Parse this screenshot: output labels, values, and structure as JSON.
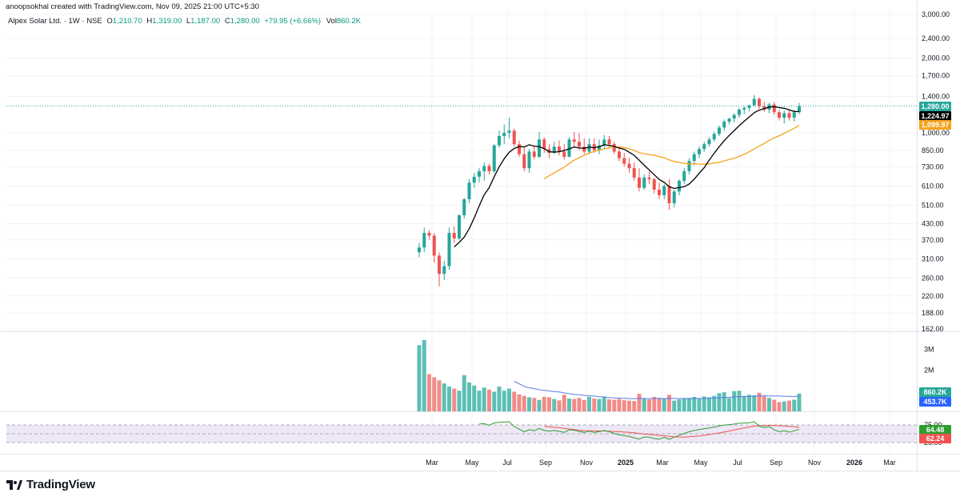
{
  "credit": "anoopsokhal created with TradingView.com, Nov 09, 2025 21:00 UTC+5:30",
  "symbol_title": "Alpex Solar Ltd. · 1W · NSE",
  "ohlc": {
    "open_label": "O",
    "open": "1,210.70",
    "high_label": "H",
    "high": "1,319.00",
    "low_label": "L",
    "low": "1,187.00",
    "close_label": "C",
    "close": "1,280.00",
    "change": "+79.95 (+6.66%)",
    "vol_label": "Vol",
    "vol": "860.2K"
  },
  "brand": {
    "name": "TradingView",
    "logo_icon": "tradingview-logo-icon"
  },
  "colors": {
    "up": "#26a69a",
    "down": "#ef5350",
    "sma_fast": "#000000",
    "sma_slow": "#f7a21b",
    "rsi": "#2e9e2e",
    "rsi_ma": "#ef5350",
    "vol_ma": "#5b7be8",
    "rsi_band": "#ede7f6"
  },
  "chart_data": {
    "type": "candlestick",
    "interval": "1W",
    "y_scale": "log",
    "price_axis": [
      "3,000.00",
      "2,400.00",
      "2,000.00",
      "1,700.00",
      "1,400.00",
      "1,000.00",
      "850.00",
      "730.00",
      "610.00",
      "510.00",
      "430.00",
      "370.00",
      "310.00",
      "260.00",
      "220.00",
      "188.00",
      "162.00"
    ],
    "price_axis_values": [
      3000,
      2400,
      2000,
      1700,
      1400,
      1000,
      850,
      730,
      610,
      510,
      430,
      370,
      310,
      260,
      220,
      188,
      162
    ],
    "time_axis": [
      "Mar",
      "May",
      "Jul",
      "Sep",
      "Nov",
      "2025",
      "Mar",
      "May",
      "Jul",
      "Sep",
      "Nov",
      "2026",
      "Mar"
    ],
    "price_tags": [
      {
        "label": "1,280.00",
        "value": 1280,
        "color": "#26a69a"
      },
      {
        "label": "1,224.97",
        "value": 1224.97,
        "color": "#000000"
      },
      {
        "label": "1,099.97",
        "value": 1099.97,
        "color": "#f7a21b"
      }
    ],
    "candles": [
      [
        330,
        360,
        315,
        345
      ],
      [
        345,
        415,
        330,
        395
      ],
      [
        395,
        405,
        370,
        385
      ],
      [
        385,
        395,
        300,
        320
      ],
      [
        320,
        330,
        240,
        270
      ],
      [
        270,
        305,
        255,
        290
      ],
      [
        290,
        415,
        280,
        395
      ],
      [
        395,
        420,
        360,
        375
      ],
      [
        375,
        470,
        370,
        465
      ],
      [
        465,
        545,
        450,
        540
      ],
      [
        540,
        650,
        520,
        630
      ],
      [
        630,
        690,
        600,
        665
      ],
      [
        665,
        720,
        630,
        700
      ],
      [
        700,
        760,
        640,
        735
      ],
      [
        735,
        750,
        680,
        700
      ],
      [
        700,
        900,
        690,
        890
      ],
      [
        890,
        1020,
        870,
        970
      ],
      [
        970,
        1080,
        900,
        1000
      ],
      [
        1000,
        1150,
        950,
        1020
      ],
      [
        1020,
        1040,
        880,
        900
      ],
      [
        900,
        930,
        800,
        820
      ],
      [
        820,
        880,
        700,
        720
      ],
      [
        720,
        860,
        690,
        840
      ],
      [
        840,
        880,
        780,
        800
      ],
      [
        800,
        1010,
        790,
        940
      ],
      [
        940,
        960,
        830,
        860
      ],
      [
        860,
        900,
        790,
        830
      ],
      [
        830,
        920,
        820,
        880
      ],
      [
        880,
        930,
        810,
        840
      ],
      [
        840,
        900,
        780,
        800
      ],
      [
        800,
        960,
        800,
        940
      ],
      [
        940,
        1010,
        880,
        920
      ],
      [
        920,
        1000,
        850,
        880
      ],
      [
        880,
        950,
        820,
        840
      ],
      [
        840,
        950,
        820,
        900
      ],
      [
        900,
        950,
        830,
        850
      ],
      [
        850,
        940,
        820,
        890
      ],
      [
        890,
        980,
        860,
        940
      ],
      [
        940,
        970,
        870,
        900
      ],
      [
        900,
        920,
        820,
        840
      ],
      [
        840,
        880,
        770,
        790
      ],
      [
        790,
        830,
        730,
        750
      ],
      [
        750,
        790,
        690,
        720
      ],
      [
        720,
        760,
        640,
        660
      ],
      [
        660,
        720,
        580,
        600
      ],
      [
        600,
        680,
        590,
        660
      ],
      [
        660,
        700,
        620,
        650
      ],
      [
        650,
        660,
        570,
        590
      ],
      [
        590,
        630,
        540,
        560
      ],
      [
        560,
        620,
        540,
        610
      ],
      [
        610,
        650,
        490,
        520
      ],
      [
        520,
        590,
        500,
        580
      ],
      [
        580,
        650,
        560,
        640
      ],
      [
        640,
        720,
        620,
        700
      ],
      [
        700,
        790,
        680,
        770
      ],
      [
        770,
        840,
        740,
        820
      ],
      [
        820,
        880,
        790,
        860
      ],
      [
        860,
        920,
        840,
        900
      ],
      [
        900,
        960,
        880,
        940
      ],
      [
        940,
        1010,
        920,
        990
      ],
      [
        990,
        1070,
        970,
        1050
      ],
      [
        1050,
        1130,
        1020,
        1110
      ],
      [
        1110,
        1150,
        1080,
        1140
      ],
      [
        1140,
        1200,
        1100,
        1180
      ],
      [
        1180,
        1260,
        1150,
        1240
      ],
      [
        1240,
        1280,
        1190,
        1260
      ],
      [
        1260,
        1300,
        1220,
        1290
      ],
      [
        1290,
        1420,
        1280,
        1370
      ],
      [
        1370,
        1390,
        1250,
        1280
      ],
      [
        1280,
        1330,
        1210,
        1240
      ],
      [
        1240,
        1320,
        1200,
        1300
      ],
      [
        1300,
        1330,
        1180,
        1210
      ],
      [
        1210,
        1240,
        1120,
        1150
      ],
      [
        1150,
        1230,
        1090,
        1200
      ],
      [
        1200,
        1230,
        1120,
        1150
      ],
      [
        1150,
        1240,
        1110,
        1210
      ],
      [
        1210,
        1319,
        1187,
        1280
      ]
    ],
    "volume_axis": [
      "3M",
      "2M"
    ],
    "volume_tags": [
      {
        "label": "860.2K",
        "value": 860200,
        "color": "#26a69a"
      },
      {
        "label": "453.7K",
        "value": 453700,
        "color": "#2962ff"
      }
    ],
    "volumes": [
      3200000,
      3450000,
      1800000,
      1650000,
      1500000,
      1350000,
      1200000,
      1100000,
      1000000,
      1750000,
      1400000,
      1250000,
      1000000,
      1150000,
      1050000,
      950000,
      1200000,
      1000000,
      1100000,
      950000,
      820000,
      750000,
      680000,
      650000,
      550000,
      700000,
      680000,
      600000,
      530000,
      800000,
      620000,
      600000,
      650000,
      550000,
      700000,
      620000,
      600000,
      720000,
      580000,
      560000,
      600000,
      540000,
      520000,
      500000,
      850000,
      620000,
      580000,
      700000,
      640000,
      600000,
      800000,
      520000,
      580000,
      620000,
      650000,
      700000,
      600000,
      720000,
      680000,
      750000,
      880000,
      920000,
      640000,
      980000,
      1000000,
      750000,
      800000,
      780000,
      900000,
      720000,
      650000,
      560000,
      450000,
      480000,
      520000,
      560000,
      860200
    ],
    "rsi_axis": [
      "75.00",
      "25.00"
    ],
    "rsi_axis_values": [
      75,
      25
    ],
    "rsi_tags": [
      {
        "label": "64.48",
        "value": 64.48,
        "color": "#2e9e2e"
      },
      {
        "label": "62.24",
        "value": 62.24,
        "color": "#ef5350"
      }
    ]
  }
}
